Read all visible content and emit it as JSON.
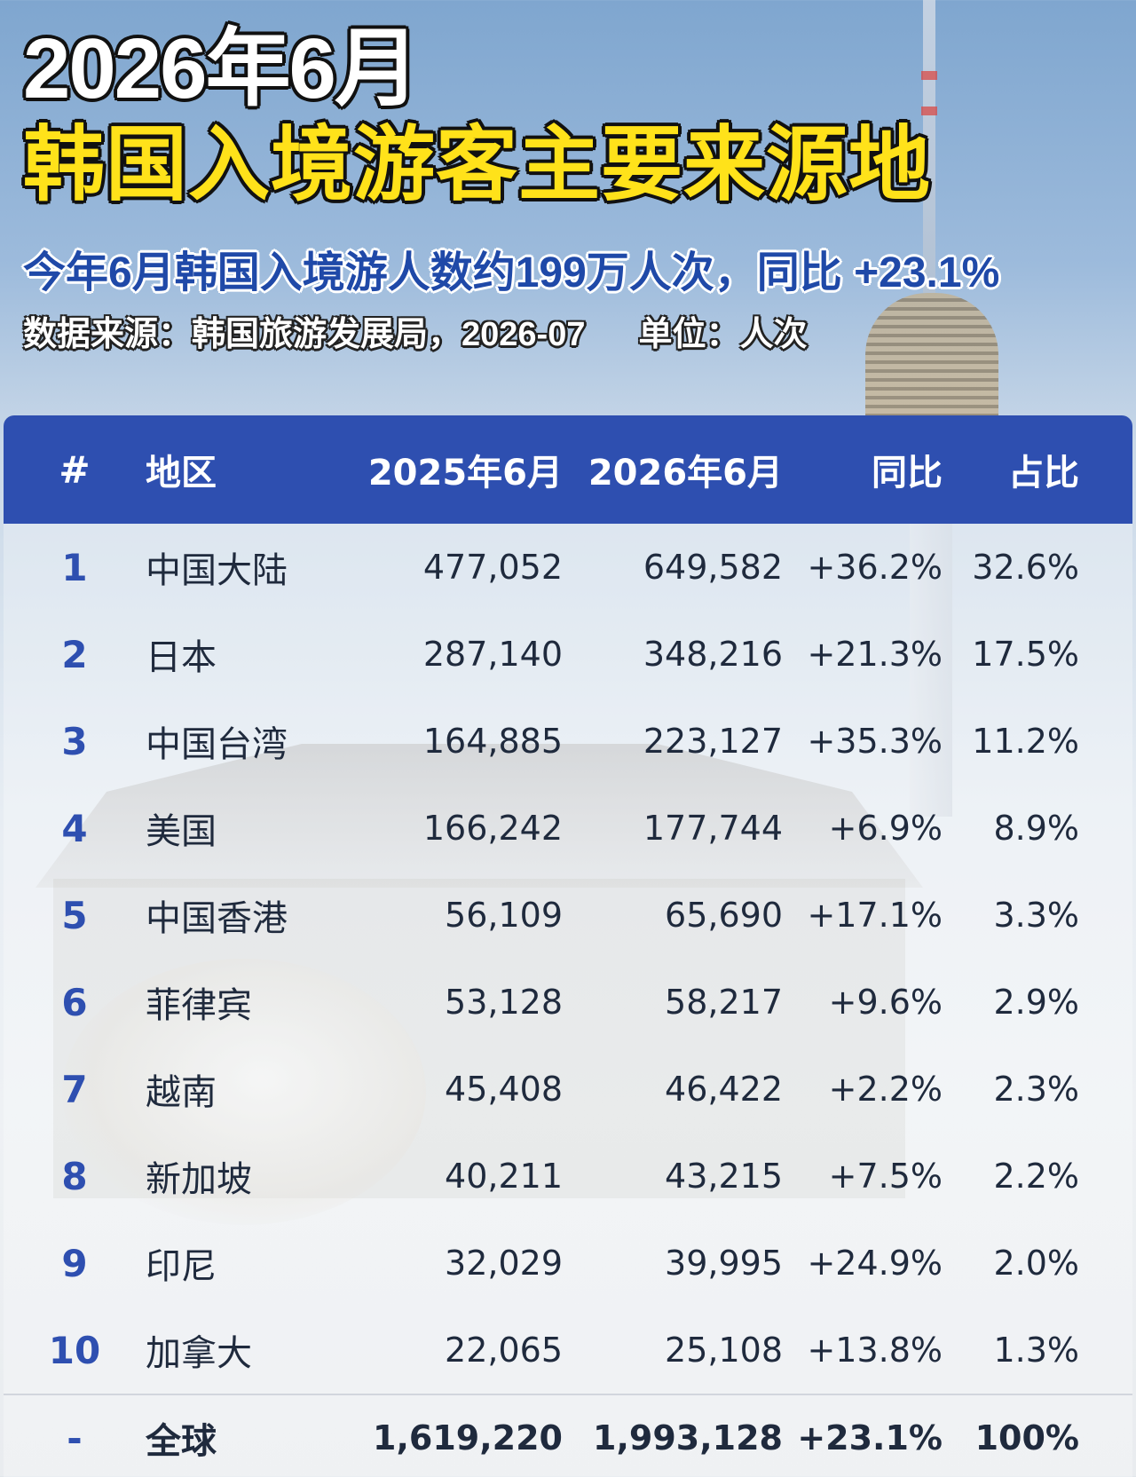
{
  "header": {
    "title_year": "2026年6月",
    "title_main": "韩国入境游客主要来源地",
    "subtitle": "今年6月韩国入境游人数约199万人次，同比 +23.1%",
    "source": "数据来源：韩国旅游发展局，2026-07",
    "unit": "单位：人次"
  },
  "table": {
    "headers": {
      "rank": "#",
      "region": "地区",
      "prev": "2025年6月",
      "cur": "2026年6月",
      "yoy": "同比",
      "share": "占比"
    },
    "rows": [
      {
        "rank": "1",
        "region": "中国大陆",
        "prev": "477,052",
        "cur": "649,582",
        "yoy": "+36.2%",
        "share": "32.6%"
      },
      {
        "rank": "2",
        "region": "日本",
        "prev": "287,140",
        "cur": "348,216",
        "yoy": "+21.3%",
        "share": "17.5%"
      },
      {
        "rank": "3",
        "region": "中国台湾",
        "prev": "164,885",
        "cur": "223,127",
        "yoy": "+35.3%",
        "share": "11.2%"
      },
      {
        "rank": "4",
        "region": "美国",
        "prev": "166,242",
        "cur": "177,744",
        "yoy": "+6.9%",
        "share": "8.9%"
      },
      {
        "rank": "5",
        "region": "中国香港",
        "prev": "56,109",
        "cur": "65,690",
        "yoy": "+17.1%",
        "share": "3.3%"
      },
      {
        "rank": "6",
        "region": "菲律宾",
        "prev": "53,128",
        "cur": "58,217",
        "yoy": "+9.6%",
        "share": "2.9%"
      },
      {
        "rank": "7",
        "region": "越南",
        "prev": "45,408",
        "cur": "46,422",
        "yoy": "+2.2%",
        "share": "2.3%"
      },
      {
        "rank": "8",
        "region": "新加坡",
        "prev": "40,211",
        "cur": "43,215",
        "yoy": "+7.5%",
        "share": "2.2%"
      },
      {
        "rank": "9",
        "region": "印尼",
        "prev": "32,029",
        "cur": "39,995",
        "yoy": "+24.9%",
        "share": "2.0%"
      },
      {
        "rank": "10",
        "region": "加拿大",
        "prev": "22,065",
        "cur": "25,108",
        "yoy": "+13.8%",
        "share": "1.3%"
      }
    ],
    "total": {
      "rank": "-",
      "region": "全球",
      "prev": "1,619,220",
      "cur": "1,993,128",
      "yoy": "+23.1%",
      "share": "100%"
    }
  },
  "colors": {
    "header_bg": "#2e4fb0",
    "title_yellow": "#ffe21a",
    "subtitle_blue": "#1f49a8"
  }
}
